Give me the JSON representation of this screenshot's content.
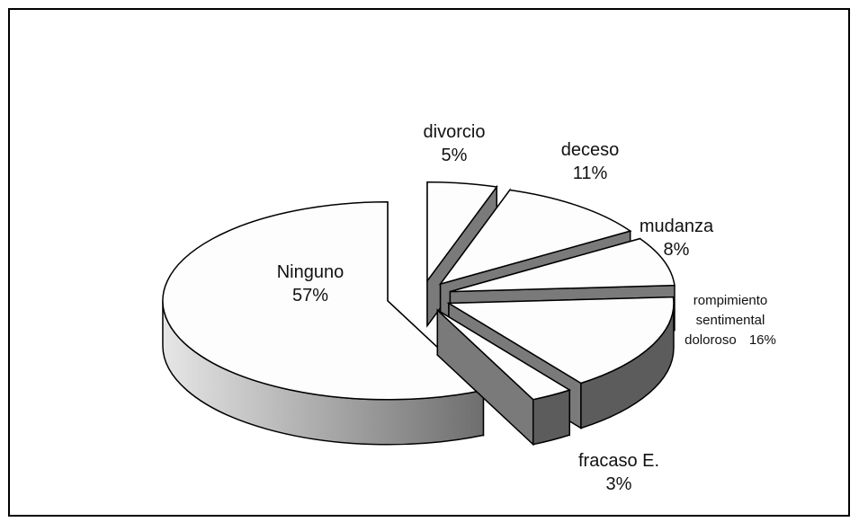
{
  "chart_data": {
    "type": "pie",
    "categories": [
      "divorcio",
      "deceso",
      "mudanza",
      "rompimiento sentimental doloroso",
      "fracaso E.",
      "Ninguno"
    ],
    "values": [
      5,
      11,
      8,
      16,
      3,
      57
    ],
    "value_labels": [
      "5%",
      "11%",
      "8%",
      "16%",
      "3%",
      "57%"
    ]
  }
}
